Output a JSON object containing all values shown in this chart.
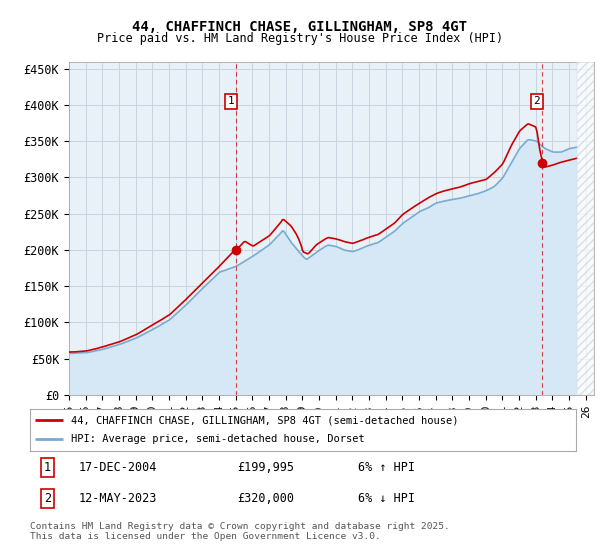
{
  "title": "44, CHAFFINCH CHASE, GILLINGHAM, SP8 4GT",
  "subtitle": "Price paid vs. HM Land Registry's House Price Index (HPI)",
  "ylabel_ticks": [
    0,
    50000,
    100000,
    150000,
    200000,
    250000,
    300000,
    350000,
    400000,
    450000
  ],
  "ylabel_labels": [
    "£0",
    "£50K",
    "£100K",
    "£150K",
    "£200K",
    "£250K",
    "£300K",
    "£350K",
    "£400K",
    "£450K"
  ],
  "ylim": [
    0,
    460000
  ],
  "xlim_start": 1995.0,
  "xlim_end": 2026.5,
  "sale1_x": 2005.0,
  "sale1_y": 199995,
  "sale1_label": "1",
  "sale2_x": 2023.37,
  "sale2_y": 320000,
  "sale2_label": "2",
  "sale1_marker_y": 405000,
  "sale2_marker_y": 405000,
  "property_line_color": "#cc0000",
  "hpi_line_color": "#7aabcf",
  "hpi_fill_color": "#d6e8f5",
  "plot_bg_color": "#e8f0f8",
  "grid_color": "#c8d4e0",
  "legend_label1": "44, CHAFFINCH CHASE, GILLINGHAM, SP8 4GT (semi-detached house)",
  "legend_label2": "HPI: Average price, semi-detached house, Dorset",
  "table_row1": [
    "1",
    "17-DEC-2004",
    "£199,995",
    "6% ↑ HPI"
  ],
  "table_row2": [
    "2",
    "12-MAY-2023",
    "£320,000",
    "6% ↓ HPI"
  ],
  "footer": "Contains HM Land Registry data © Crown copyright and database right 2025.\nThis data is licensed under the Open Government Licence v3.0.",
  "hatch_start": 2025.5,
  "future_hatch_color": "#c8d4e0"
}
